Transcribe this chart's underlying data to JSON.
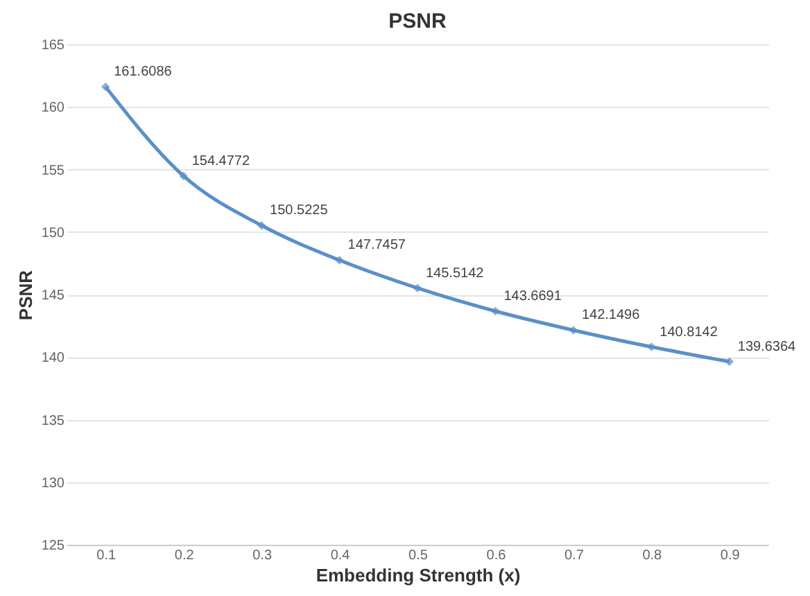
{
  "chart_data": {
    "type": "line",
    "title": "PSNR",
    "xlabel": "Embedding Strength (x)",
    "ylabel": "PSNR",
    "categories": [
      "0.1",
      "0.2",
      "0.3",
      "0.4",
      "0.5",
      "0.6",
      "0.7",
      "0.8",
      "0.9"
    ],
    "series": [
      {
        "color": "#5b8fc7",
        "values": [
          161.6086,
          154.4772,
          150.5225,
          147.7457,
          145.5142,
          143.6691,
          142.1496,
          140.8142,
          139.6364
        ]
      }
    ],
    "ylim": [
      125,
      165
    ],
    "yticks": [
      125,
      130,
      135,
      140,
      145,
      150,
      155,
      160,
      165
    ],
    "grid": "y",
    "marker": "diamond",
    "data_labels": true,
    "line_style": "solid"
  }
}
